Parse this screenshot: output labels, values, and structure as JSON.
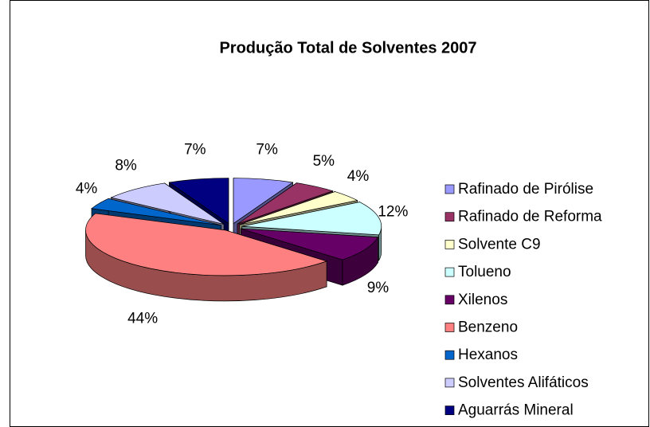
{
  "chart_data": {
    "type": "pie",
    "title": "Produção Total de Solventes 2007",
    "categories": [
      "Rafinado de Pirólise",
      "Rafinado de Reforma",
      "Solvente C9",
      "Tolueno",
      "Xilenos",
      "Benzeno",
      "Hexanos",
      "Solventes Alifáticos",
      "Aguarrás Mineral"
    ],
    "values": [
      7,
      5,
      4,
      12,
      9,
      44,
      4,
      8,
      7
    ],
    "value_labels": [
      "7%",
      "5%",
      "4%",
      "12%",
      "9%",
      "44%",
      "4%",
      "8%",
      "7%"
    ],
    "colors": [
      "#9999ff",
      "#993366",
      "#ffffcc",
      "#ccffff",
      "#660066",
      "#ff8080",
      "#0066cc",
      "#ccccff",
      "#000080"
    ],
    "legend": "right"
  }
}
